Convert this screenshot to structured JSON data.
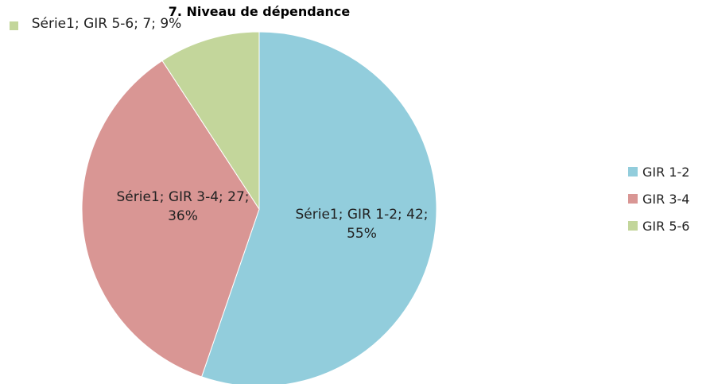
{
  "chart_data": {
    "type": "pie",
    "title": "7. Niveau de dépendance",
    "categories": [
      "GIR 1-2",
      "GIR 3-4",
      "GIR 5-6"
    ],
    "values": [
      42,
      27,
      7
    ],
    "value_labels": [
      "Série1; GIR 1-2; 42; 55%",
      "Série1; GIR 3-4; 27; 36%",
      "Série1; GIR 5-6; 7; 9%"
    ],
    "colors": [
      "#92cddc",
      "#d99694",
      "#c3d69b"
    ],
    "legend": "right"
  }
}
